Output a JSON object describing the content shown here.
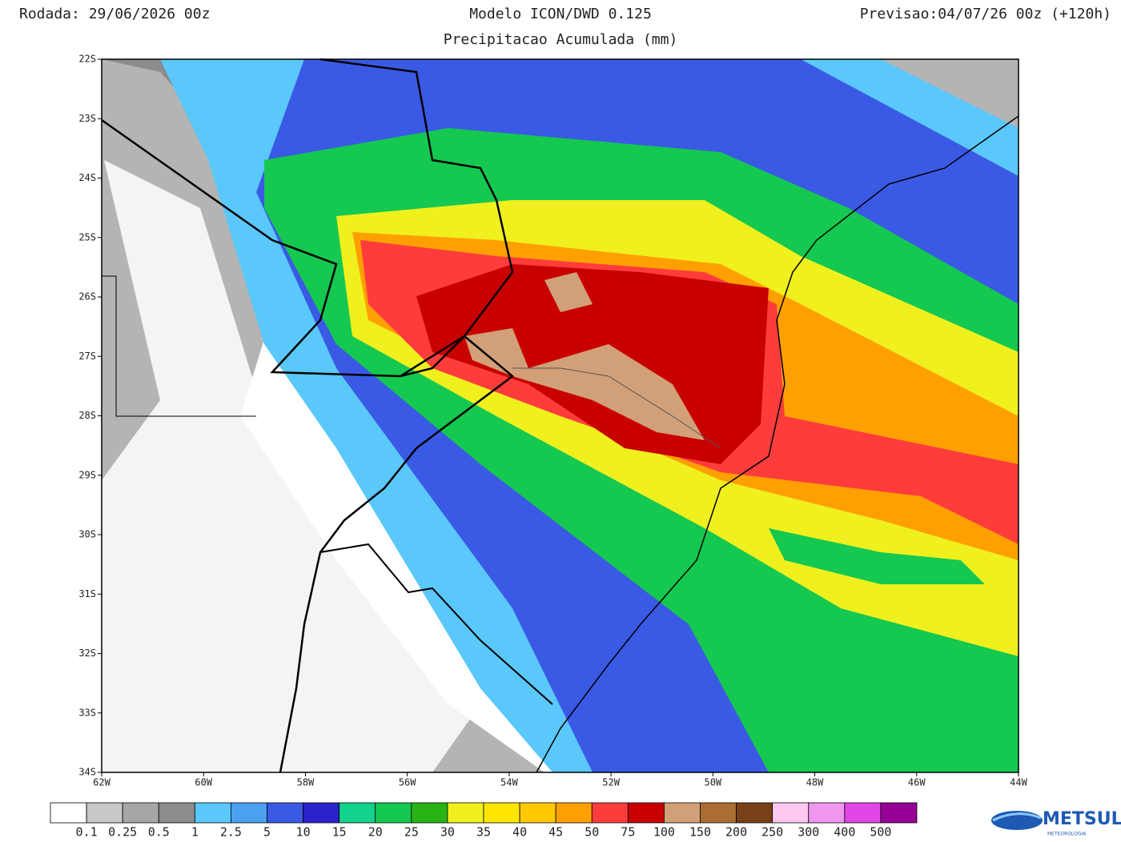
{
  "header": {
    "left": "Rodada: 29/06/2026 00z",
    "center": "Modelo ICON/DWD 0.125",
    "subtitle": "Precipitacao Acumulada (mm)",
    "right": "Previsao:04/07/26 00z (+120h)"
  },
  "map": {
    "latlim": [
      -22,
      -34
    ],
    "lonlim": [
      -62,
      -44
    ],
    "lat_ticks": [
      {
        "value": -22,
        "label": "22S"
      },
      {
        "value": -23,
        "label": "23S"
      },
      {
        "value": -24,
        "label": "24S"
      },
      {
        "value": -25,
        "label": "25S"
      },
      {
        "value": -26,
        "label": "26S"
      },
      {
        "value": -27,
        "label": "27S"
      },
      {
        "value": -28,
        "label": "28S"
      },
      {
        "value": -29,
        "label": "29S"
      },
      {
        "value": -30,
        "label": "30S"
      },
      {
        "value": -31,
        "label": "31S"
      },
      {
        "value": -32,
        "label": "32S"
      },
      {
        "value": -33,
        "label": "33S"
      },
      {
        "value": -34,
        "label": "34S"
      }
    ],
    "lon_ticks": [
      {
        "value": -62,
        "label": "62W"
      },
      {
        "value": -60,
        "label": "60W"
      },
      {
        "value": -58,
        "label": "58W"
      },
      {
        "value": -56,
        "label": "56W"
      },
      {
        "value": -54,
        "label": "54W"
      },
      {
        "value": -52,
        "label": "52W"
      },
      {
        "value": -50,
        "label": "50W"
      },
      {
        "value": -48,
        "label": "48W"
      },
      {
        "value": -46,
        "label": "46W"
      },
      {
        "value": -44,
        "label": "44W"
      }
    ]
  },
  "colorbar": {
    "labels": [
      0.1,
      0.25,
      0.5,
      1,
      2.5,
      5,
      10,
      15,
      20,
      25,
      30,
      35,
      40,
      45,
      50,
      75,
      100,
      150,
      200,
      250,
      300,
      400,
      500
    ],
    "colors": [
      "#ffffff",
      "#c8c8c8",
      "#a6a6a6",
      "#8c8c8c",
      "#5ac8fa",
      "#4ba0f0",
      "#3a5ae6",
      "#2a22c8",
      "#12d28c",
      "#14c850",
      "#28b414",
      "#f0f01e",
      "#ffe600",
      "#ffc800",
      "#ffa000",
      "#ff3c3c",
      "#c80000",
      "#d2a078",
      "#aa6e32",
      "#784016",
      "#ffc8f0",
      "#f096f0",
      "#e146e6",
      "#960096"
    ]
  },
  "logo": {
    "name": "METSUL",
    "tagline": "METEOROLOGIA"
  }
}
